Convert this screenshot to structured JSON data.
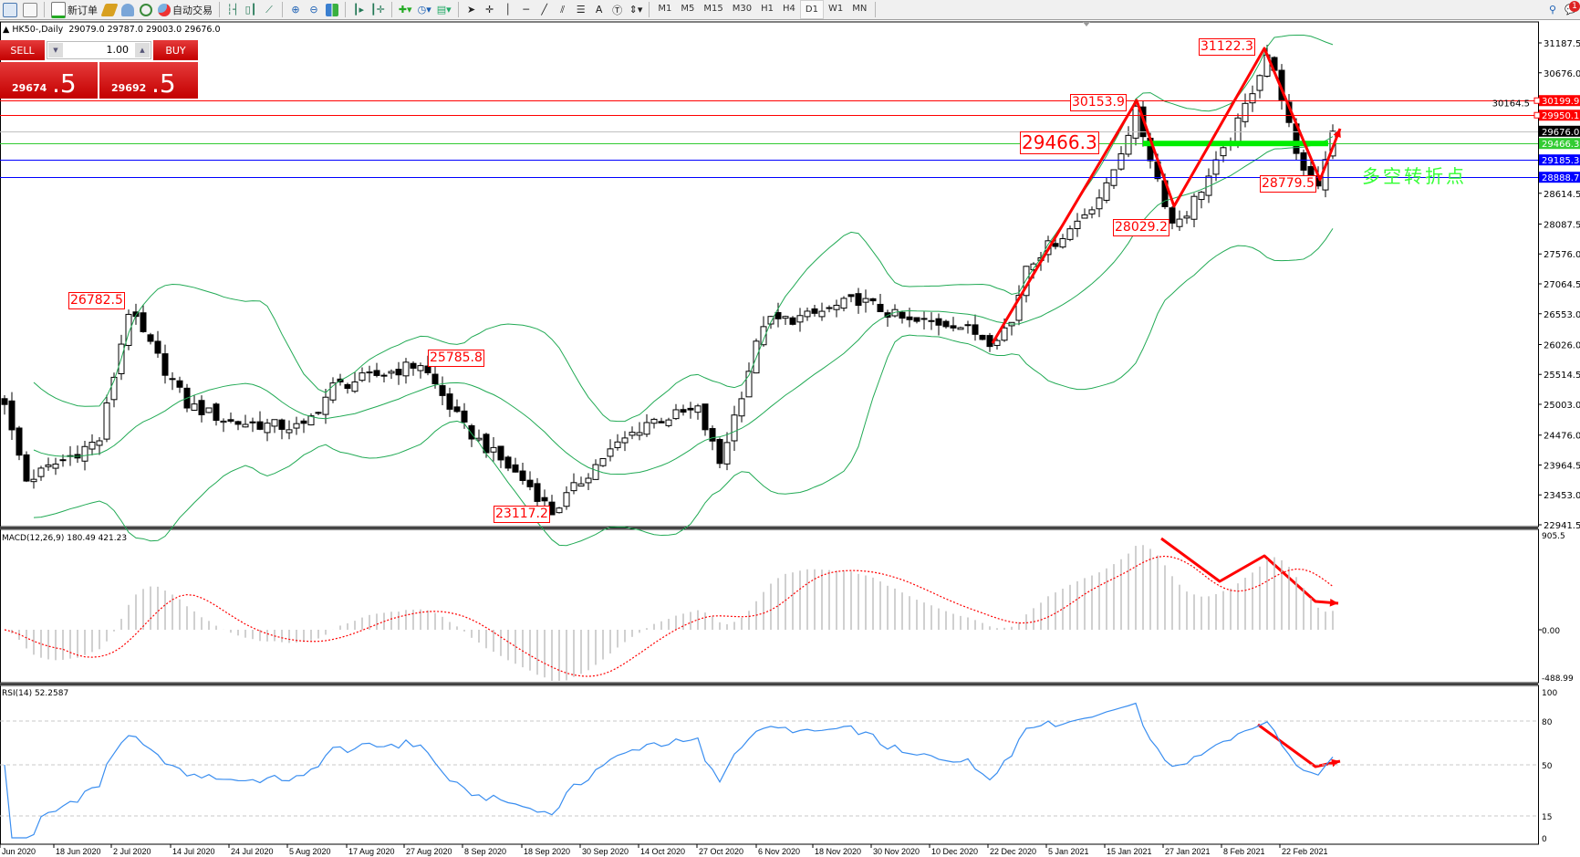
{
  "toolbar": {
    "new_order": "新订单",
    "auto_trading": "自动交易",
    "timeframes": [
      "M1",
      "M5",
      "M15",
      "M30",
      "H1",
      "H4",
      "D1",
      "W1",
      "MN"
    ],
    "active_timeframe": "D1",
    "notification_count": "1"
  },
  "chart": {
    "symbol": "HK50-,Daily",
    "ohlc": "29079.0 29787.0 29003.0 29676.0"
  },
  "trade_panel": {
    "sell_label": "SELL",
    "buy_label": "BUY",
    "lot": "1.00",
    "sell_price_main": "29674",
    "sell_price_big": ".5",
    "buy_price_main": "29692",
    "buy_price_big": ".5",
    "color": "#d41a1a"
  },
  "chart_data": {
    "type": "candlestick",
    "price_axis": {
      "range": [
        22941.5,
        31187.5
      ],
      "ticks": [
        "31187.5",
        "30676.0",
        "30164.5",
        "28614.5",
        "28087.5",
        "27576.0",
        "27064.5",
        "26553.0",
        "26026.0",
        "25514.5",
        "25003.0",
        "24476.0",
        "23964.5",
        "23453.0",
        "22941.5"
      ]
    },
    "date_ticks": [
      "Jun 2020",
      "18 Jun 2020",
      "2 Jul 2020",
      "14 Jul 2020",
      "24 Jul 2020",
      "5 Aug 2020",
      "17 Aug 2020",
      "27 Aug 2020",
      "8 Sep 2020",
      "18 Sep 2020",
      "30 Sep 2020",
      "14 Oct 2020",
      "27 Oct 2020",
      "6 Nov 2020",
      "18 Nov 2020",
      "30 Nov 2020",
      "10 Dec 2020",
      "22 Dec 2020",
      "5 Jan 2021",
      "15 Jan 2021",
      "27 Jan 2021",
      "8 Feb 2021",
      "22 Feb 2021"
    ],
    "price_path": [
      [
        0,
        25000
      ],
      [
        3,
        23700
      ],
      [
        13,
        24400
      ],
      [
        17,
        26600
      ],
      [
        25,
        25000
      ],
      [
        31,
        24700
      ],
      [
        41,
        24600
      ],
      [
        45,
        25300
      ],
      [
        57,
        25700
      ],
      [
        63,
        24600
      ],
      [
        72,
        23600
      ],
      [
        75,
        23150
      ],
      [
        82,
        24100
      ],
      [
        88,
        24700
      ],
      [
        95,
        24900
      ],
      [
        98,
        24000
      ],
      [
        101,
        25200
      ],
      [
        104,
        26400
      ],
      [
        110,
        26500
      ],
      [
        117,
        26800
      ],
      [
        124,
        26400
      ],
      [
        130,
        26400
      ],
      [
        135,
        26100
      ],
      [
        138,
        26400
      ],
      [
        140,
        27400
      ],
      [
        146,
        28000
      ],
      [
        151,
        28700
      ],
      [
        155,
        30000
      ],
      [
        160,
        28100
      ],
      [
        162,
        28300
      ],
      [
        167,
        29300
      ],
      [
        169,
        29800
      ],
      [
        173,
        31000
      ],
      [
        175,
        30300
      ],
      [
        177,
        29200
      ],
      [
        179,
        28900
      ],
      [
        180,
        28800
      ],
      [
        182,
        29676
      ]
    ],
    "horizontal_lines": [
      {
        "price": 30199.9,
        "label": "30199.9",
        "color": "#ff0000"
      },
      {
        "price": 29950.1,
        "label": "29950.1",
        "color": "#ff0000"
      },
      {
        "price": 29676.0,
        "label": "29676.0",
        "color": "#c0c0c0",
        "tag_color": "#000000"
      },
      {
        "price": 29466.3,
        "label": "29466.3",
        "color": "#33cc33"
      },
      {
        "price": 29185.3,
        "label": "29185.3",
        "color": "#0000ff"
      },
      {
        "price": 28888.7,
        "label": "28888.7",
        "color": "#0000ff"
      }
    ],
    "annotations": [
      {
        "text": "31122.3"
      },
      {
        "text": "30153.9"
      },
      {
        "text": "29466.3"
      },
      {
        "text": "28029.2"
      },
      {
        "text": "28779.5"
      },
      {
        "text": "26782.5"
      },
      {
        "text": "25785.8"
      },
      {
        "text": "23117.2"
      }
    ],
    "turning_point_label": "多空转折点",
    "turning_point_color": "#33ff33",
    "bollinger_color": "#22aa55",
    "macd": {
      "label": "MACD(12,26,9) 180.49 421.23",
      "ticks": [
        "905.5",
        "0.00",
        "-488.99"
      ],
      "range": [
        -488.99,
        905.5
      ],
      "hist_color": "#c0c0c0",
      "signal_color": "#ff0000"
    },
    "rsi": {
      "label": "RSI(14) 52.2587",
      "ticks": [
        "100",
        "80",
        "50",
        "15",
        "0"
      ],
      "levels": [
        80,
        50,
        15
      ],
      "color": "#3a8ef0"
    }
  }
}
